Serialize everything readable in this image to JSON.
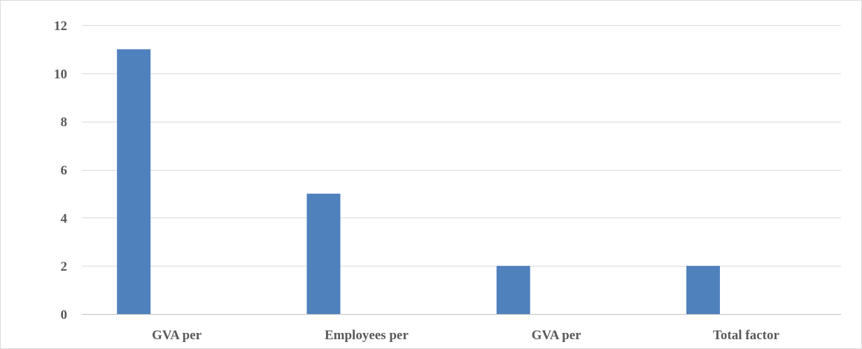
{
  "chart_data": {
    "type": "bar",
    "categories": [
      "GVA per",
      "Employees per",
      "GVA per",
      "Total factor"
    ],
    "series": [
      {
        "values": [
          11,
          5,
          2,
          2
        ]
      }
    ],
    "title": "",
    "xlabel": "",
    "ylabel": "",
    "ylim": [
      0,
      12
    ],
    "yticks": [
      0,
      2,
      4,
      6,
      8,
      10,
      12
    ],
    "grid": true,
    "legend": "none",
    "colors": {
      "bar": "#4f81bd",
      "grid": "#d9d9d9",
      "axis": "#bfbfbf",
      "label": "#595959"
    }
  }
}
